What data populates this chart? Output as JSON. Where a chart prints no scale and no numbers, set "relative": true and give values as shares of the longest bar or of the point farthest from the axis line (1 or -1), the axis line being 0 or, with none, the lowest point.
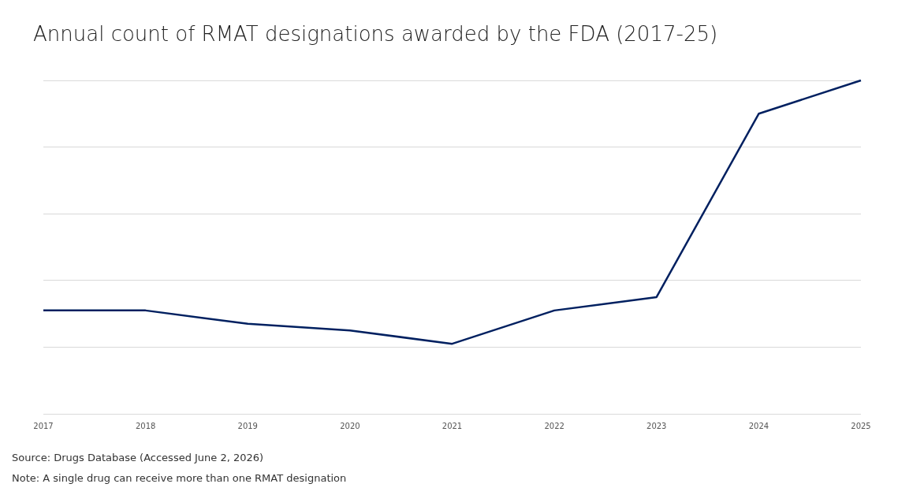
{
  "chart_data": {
    "type": "line",
    "title": "Annual count of RMAT designations awarded by the FDA (2017-25)",
    "categories": [
      "2017",
      "2018",
      "2019",
      "2020",
      "2021",
      "2022",
      "2023",
      "2024",
      "2025"
    ],
    "series": [
      {
        "color": "#002060",
        "values": [
          0.31,
          0.31,
          0.27,
          0.25,
          0.21,
          0.31,
          0.35,
          0.9,
          1
        ]
      }
    ],
    "relative": true,
    "grid": "y",
    "legend": false,
    "marker": "none",
    "line_style": "solid",
    "annotations": [
      "Source: Drugs Database (Accessed June 2, 2026)",
      "Note: A single drug can receive more than one RMAT designation"
    ]
  }
}
